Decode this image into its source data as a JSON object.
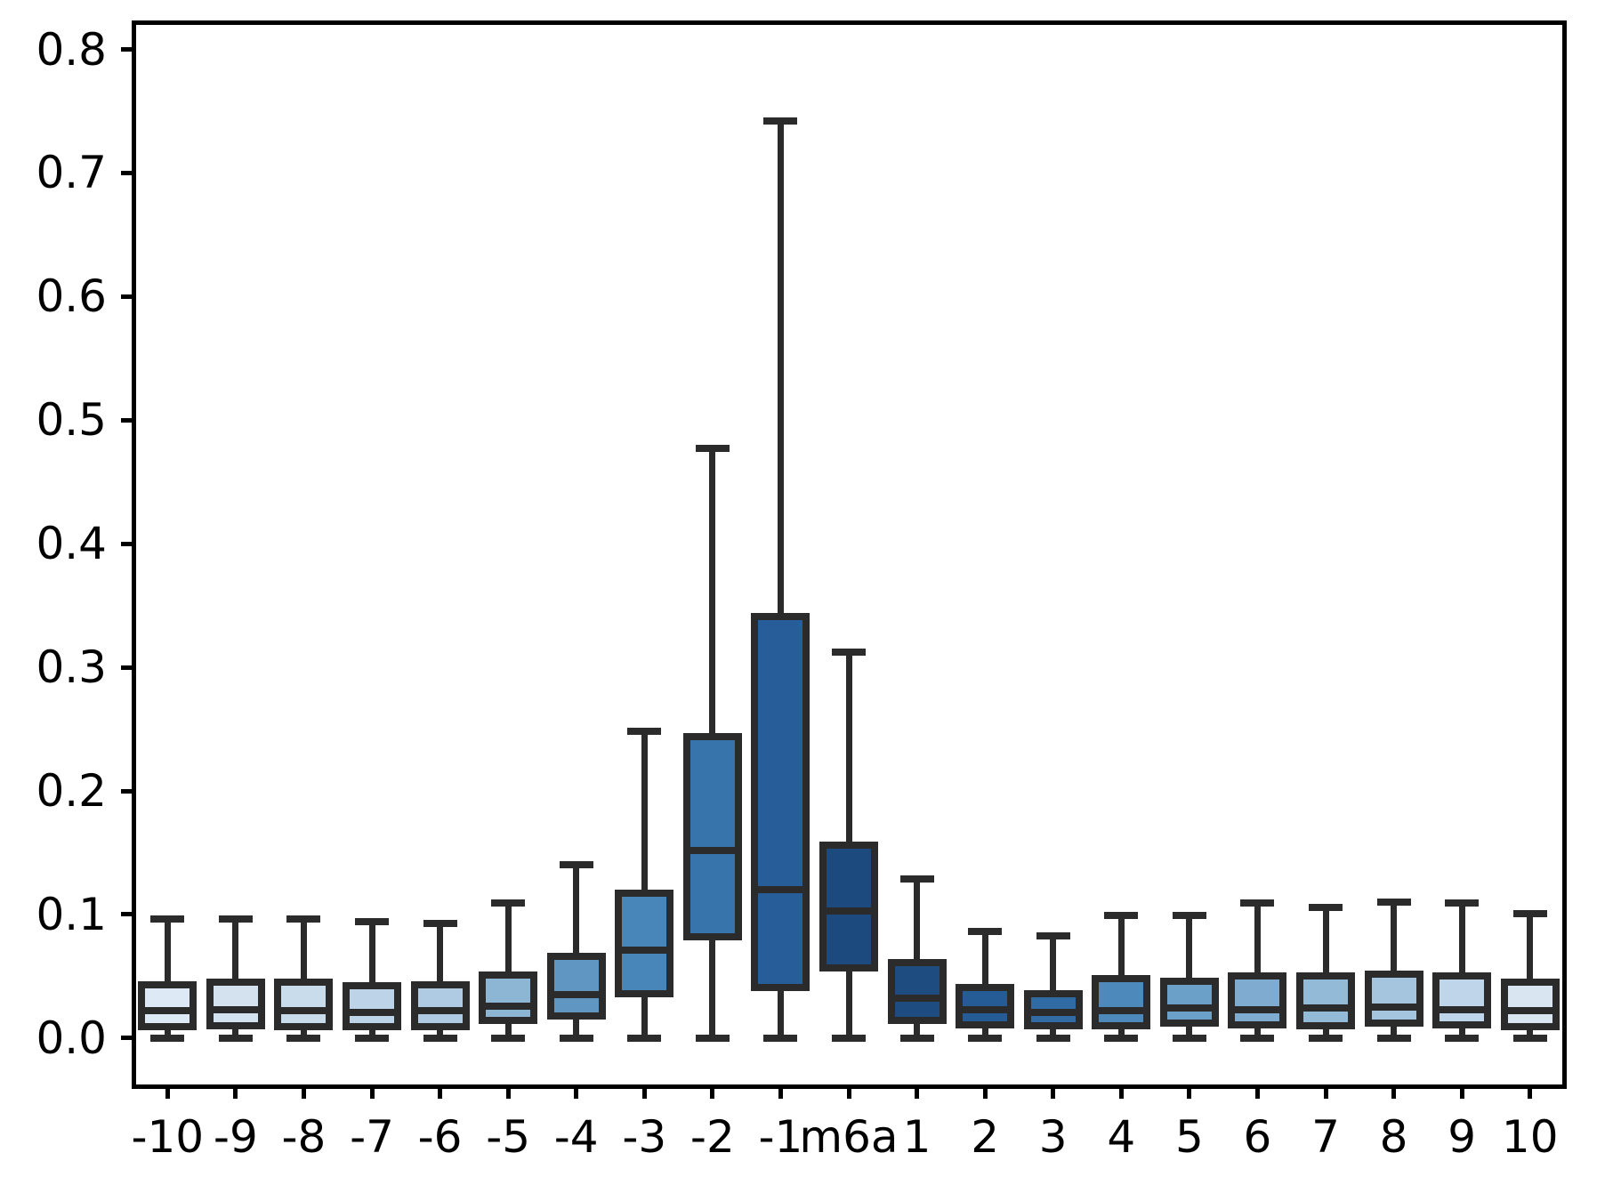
{
  "figure": {
    "background": "#ffffff",
    "text_color": "#000000",
    "spine_color": "#000000",
    "box_line_color": "#2b2b2b"
  },
  "chart_data": {
    "type": "boxplot",
    "title": "",
    "xlabel": "",
    "ylabel": "",
    "grid": false,
    "legend": false,
    "y_range": [
      -0.039,
      0.822
    ],
    "y_ticks": [
      "0.0",
      "0.1",
      "0.2",
      "0.3",
      "0.4",
      "0.5",
      "0.6",
      "0.7",
      "0.8"
    ],
    "categories": [
      "-10",
      "-9",
      "-8",
      "-7",
      "-6",
      "-5",
      "-4",
      "-3",
      "-2",
      "-1",
      "m6a",
      "1",
      "2",
      "3",
      "4",
      "5",
      "6",
      "7",
      "8",
      "9",
      "10"
    ],
    "series": [
      {
        "label": "-10",
        "whisker_low": 0.0,
        "q1": 0.009,
        "median": 0.022,
        "q3": 0.043,
        "whisker_high": 0.096,
        "color": "#dde9f4"
      },
      {
        "label": "-9",
        "whisker_low": 0.0,
        "q1": 0.01,
        "median": 0.023,
        "q3": 0.045,
        "whisker_high": 0.096,
        "color": "#d4e2f0"
      },
      {
        "label": "-8",
        "whisker_low": 0.0,
        "q1": 0.009,
        "median": 0.022,
        "q3": 0.045,
        "whisker_high": 0.096,
        "color": "#c9dcec"
      },
      {
        "label": "-7",
        "whisker_low": 0.0,
        "q1": 0.009,
        "median": 0.021,
        "q3": 0.042,
        "whisker_high": 0.094,
        "color": "#bdd4e8"
      },
      {
        "label": "-6",
        "whisker_low": 0.0,
        "q1": 0.009,
        "median": 0.022,
        "q3": 0.043,
        "whisker_high": 0.093,
        "color": "#aecbe3"
      },
      {
        "label": "-5",
        "whisker_low": 0.0,
        "q1": 0.014,
        "median": 0.026,
        "q3": 0.051,
        "whisker_high": 0.109,
        "color": "#8db5d4"
      },
      {
        "label": "-4",
        "whisker_low": 0.0,
        "q1": 0.018,
        "median": 0.035,
        "q3": 0.066,
        "whisker_high": 0.14,
        "color": "#6096c2"
      },
      {
        "label": "-3",
        "whisker_low": 0.0,
        "q1": 0.036,
        "median": 0.071,
        "q3": 0.117,
        "whisker_high": 0.248,
        "color": "#4886b9"
      },
      {
        "label": "-2",
        "whisker_low": 0.0,
        "q1": 0.082,
        "median": 0.152,
        "q3": 0.244,
        "whisker_high": 0.477,
        "color": "#3674ab"
      },
      {
        "label": "-1",
        "whisker_low": 0.0,
        "q1": 0.041,
        "median": 0.12,
        "q3": 0.341,
        "whisker_high": 0.742,
        "color": "#275d98"
      },
      {
        "label": "m6a",
        "whisker_low": 0.0,
        "q1": 0.057,
        "median": 0.103,
        "q3": 0.156,
        "whisker_high": 0.312,
        "color": "#1d4a7e"
      },
      {
        "label": "1",
        "whisker_low": 0.0,
        "q1": 0.014,
        "median": 0.032,
        "q3": 0.061,
        "whisker_high": 0.129,
        "color": "#1e4c81"
      },
      {
        "label": "2",
        "whisker_low": 0.0,
        "q1": 0.011,
        "median": 0.023,
        "q3": 0.041,
        "whisker_high": 0.086,
        "color": "#265c96"
      },
      {
        "label": "3",
        "whisker_low": 0.0,
        "q1": 0.01,
        "median": 0.021,
        "q3": 0.036,
        "whisker_high": 0.083,
        "color": "#306ba4"
      },
      {
        "label": "4",
        "whisker_low": 0.0,
        "q1": 0.01,
        "median": 0.022,
        "q3": 0.048,
        "whisker_high": 0.099,
        "color": "#4d89bb"
      },
      {
        "label": "5",
        "whisker_low": 0.0,
        "q1": 0.012,
        "median": 0.024,
        "q3": 0.046,
        "whisker_high": 0.099,
        "color": "#6ba0c9"
      },
      {
        "label": "6",
        "whisker_low": 0.0,
        "q1": 0.011,
        "median": 0.023,
        "q3": 0.05,
        "whisker_high": 0.109,
        "color": "#7fabd0"
      },
      {
        "label": "7",
        "whisker_low": 0.0,
        "q1": 0.01,
        "median": 0.024,
        "q3": 0.05,
        "whisker_high": 0.106,
        "color": "#93bad7"
      },
      {
        "label": "8",
        "whisker_low": 0.0,
        "q1": 0.012,
        "median": 0.025,
        "q3": 0.052,
        "whisker_high": 0.11,
        "color": "#a5c5df"
      },
      {
        "label": "9",
        "whisker_low": 0.0,
        "q1": 0.011,
        "median": 0.023,
        "q3": 0.05,
        "whisker_high": 0.109,
        "color": "#bfd6ea"
      },
      {
        "label": "10",
        "whisker_low": 0.0,
        "q1": 0.009,
        "median": 0.022,
        "q3": 0.045,
        "whisker_high": 0.101,
        "color": "#d9e6f2"
      }
    ]
  }
}
